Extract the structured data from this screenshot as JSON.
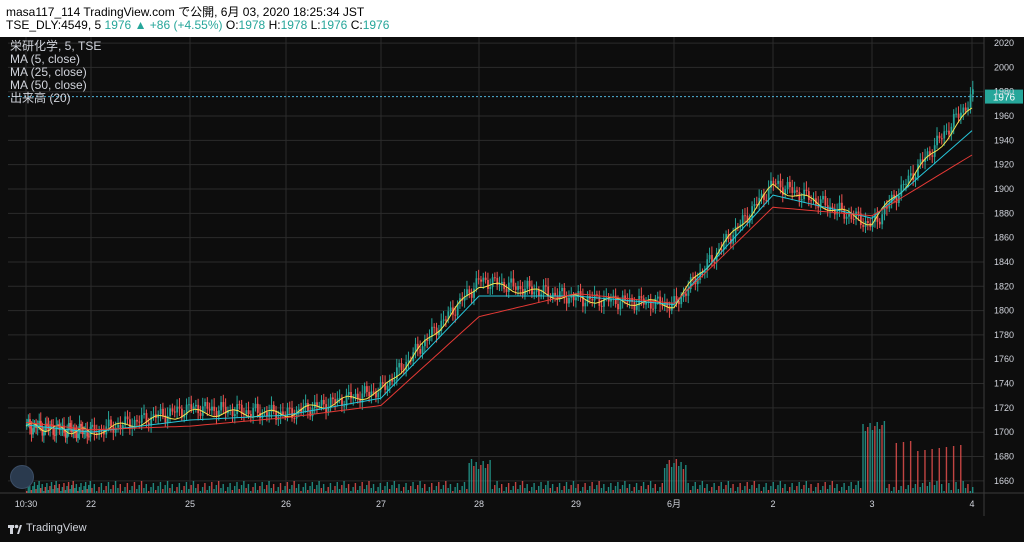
{
  "header": {
    "line1": "masa117_114 TradingView.com で公開, 6月 03, 2020 18:25:34 JST",
    "symbol_line": "TSE_DLY:4549, 5",
    "last": "1976",
    "change": "▲ +86 (+4.55%)",
    "o_label": "O:",
    "o_value": "1978",
    "h_label": "H:",
    "h_value": "1978",
    "l_label": "L:",
    "l_value": "1976",
    "c_label": "C:",
    "c_value": "1976"
  },
  "legend": {
    "title": "栄研化学, 5, TSE",
    "ma5": "MA (5, close)",
    "ma25": "MA (25, close)",
    "ma50": "MA (50, close)",
    "volume": "出来高 (20)"
  },
  "footer": {
    "brand": "TradingView"
  },
  "colors": {
    "background": "#0d0d0d",
    "grid": "#2b2b2b",
    "up": "#26a69a",
    "down": "#ef5350",
    "ma5": "#f5e350",
    "ma25": "#26c6da",
    "ma50": "#e53935",
    "price_line": "#4fb3d9",
    "axis_text": "#d1d4dc"
  },
  "chart_data": {
    "type": "candlestick",
    "title": "栄研化学, 5, TSE",
    "symbol": "TSE_DLY:4549",
    "interval": "5",
    "last_price": 1976,
    "ylim": [
      1650,
      2025
    ],
    "y_ticks": [
      1660,
      1680,
      1700,
      1720,
      1740,
      1760,
      1780,
      1800,
      1820,
      1840,
      1860,
      1880,
      1900,
      1920,
      1940,
      1960,
      1980,
      2000,
      2020
    ],
    "x_ticks": [
      "10:30",
      "22",
      "25",
      "26",
      "27",
      "28",
      "29",
      "6月",
      "2",
      "3",
      "4"
    ],
    "grid": true,
    "series": [
      {
        "name": "price",
        "x": [
          "10:30",
          "22",
          "25",
          "26",
          "27",
          "28",
          "29",
          "6月",
          "2",
          "3",
          "4"
        ],
        "values": [
          1705,
          1700,
          1720,
          1715,
          1735,
          1825,
          1810,
          1805,
          1905,
          1870,
          1976
        ]
      },
      {
        "name": "MA (5, close)",
        "x": [
          "10:30",
          "22",
          "25",
          "26",
          "27",
          "28",
          "29",
          "6月",
          "2",
          "3",
          "4"
        ],
        "values": [
          1705,
          1700,
          1716,
          1715,
          1733,
          1822,
          1810,
          1805,
          1902,
          1872,
          1966
        ]
      },
      {
        "name": "MA (25, close)",
        "x": [
          "10:30",
          "22",
          "25",
          "26",
          "27",
          "28",
          "29",
          "6月",
          "2",
          "3",
          "4"
        ],
        "values": [
          1706,
          1700,
          1710,
          1714,
          1728,
          1812,
          1812,
          1805,
          1895,
          1876,
          1948
        ]
      },
      {
        "name": "MA (50, close)",
        "x": [
          "10:30",
          "22",
          "25",
          "26",
          "27",
          "28",
          "29",
          "6月",
          "2",
          "3",
          "4"
        ],
        "values": [
          1708,
          1702,
          1705,
          1712,
          1722,
          1795,
          1814,
          1806,
          1885,
          1878,
          1928
        ]
      }
    ],
    "volume_peaks": [
      {
        "x": "28",
        "value": "high"
      },
      {
        "x": "6月",
        "value": "high"
      },
      {
        "x": "3",
        "value": "very high"
      }
    ]
  }
}
